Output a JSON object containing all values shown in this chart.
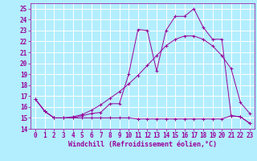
{
  "xlabel": "Windchill (Refroidissement éolien,°C)",
  "bg_color": "#b3eeff",
  "grid_color": "#ffffff",
  "line_color": "#990099",
  "xlim": [
    -0.5,
    23.5
  ],
  "ylim": [
    14,
    25.5
  ],
  "xticks": [
    0,
    1,
    2,
    3,
    4,
    5,
    6,
    7,
    8,
    9,
    10,
    11,
    12,
    13,
    14,
    15,
    16,
    17,
    18,
    19,
    20,
    21,
    22,
    23
  ],
  "yticks": [
    14,
    15,
    16,
    17,
    18,
    19,
    20,
    21,
    22,
    23,
    24,
    25
  ],
  "line1_x": [
    0,
    1,
    2,
    3,
    4,
    5,
    6,
    7,
    8,
    9,
    10,
    11,
    12,
    13,
    14,
    15,
    16,
    17,
    18,
    19,
    20,
    21,
    22,
    23
  ],
  "line1_y": [
    16.7,
    15.6,
    15.0,
    15.0,
    15.0,
    15.2,
    15.4,
    15.5,
    16.3,
    16.3,
    19.0,
    23.1,
    23.0,
    19.3,
    23.0,
    24.3,
    24.3,
    25.0,
    23.3,
    22.2,
    22.2,
    15.2,
    15.1,
    14.5
  ],
  "line2_x": [
    0,
    1,
    2,
    3,
    4,
    5,
    6,
    7,
    8,
    9,
    10,
    11,
    12,
    13,
    14,
    15,
    16,
    17,
    18,
    19,
    20,
    21,
    22,
    23
  ],
  "line2_y": [
    16.7,
    15.6,
    15.0,
    15.0,
    15.1,
    15.3,
    15.7,
    16.2,
    16.8,
    17.4,
    18.1,
    18.9,
    19.8,
    20.7,
    21.6,
    22.2,
    22.5,
    22.5,
    22.2,
    21.6,
    20.7,
    19.5,
    16.4,
    15.4
  ],
  "line3_x": [
    0,
    1,
    2,
    3,
    4,
    5,
    6,
    7,
    8,
    9,
    10,
    11,
    12,
    13,
    14,
    15,
    16,
    17,
    18,
    19,
    20,
    21,
    22,
    23
  ],
  "line3_y": [
    16.7,
    15.6,
    15.0,
    15.0,
    15.0,
    15.0,
    15.0,
    15.0,
    15.0,
    15.0,
    15.0,
    14.9,
    14.9,
    14.9,
    14.9,
    14.9,
    14.9,
    14.9,
    14.9,
    14.9,
    14.9,
    15.2,
    15.1,
    14.5
  ],
  "tick_fontsize": 5.5,
  "xlabel_fontsize": 6.0
}
